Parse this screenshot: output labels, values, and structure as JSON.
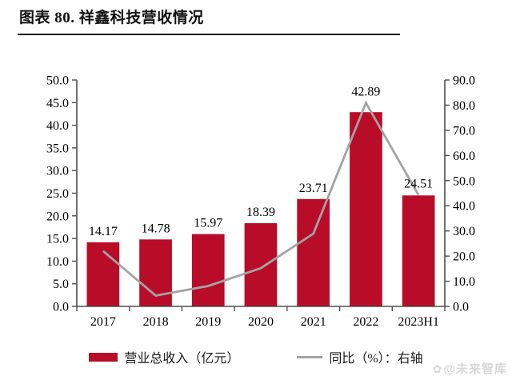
{
  "header": {
    "title": "图表 80. 祥鑫科技营收情况"
  },
  "watermark": {
    "icon_glyph": "✿",
    "text": "@未来智库"
  },
  "colors": {
    "bar": "#B80C28",
    "line": "#A3A3A3",
    "axis": "#4d4d4d",
    "label_text": "#000000",
    "title_rule": "#1c1c1c",
    "watermark": "#d7d7d7"
  },
  "chart_data": {
    "type": "bar",
    "subtype": "bar+line combo, dual axis",
    "title": "图表 80. 祥鑫科技营收情况",
    "categories": [
      "2017",
      "2018",
      "2019",
      "2020",
      "2021",
      "2022",
      "2023H1"
    ],
    "series": [
      {
        "name": "营业总收入（亿元）",
        "type": "bar",
        "axis": "left",
        "values": [
          14.17,
          14.78,
          15.97,
          18.39,
          23.71,
          42.89,
          24.51
        ],
        "data_labels": [
          "14.17",
          "14.78",
          "15.97",
          "18.39",
          "23.71",
          "42.89",
          "24.51"
        ]
      },
      {
        "name": "同比（%）：右轴",
        "type": "line",
        "axis": "right",
        "values": [
          22.0,
          4.3,
          8.1,
          15.2,
          28.9,
          80.9,
          44.3
        ]
      }
    ],
    "left_axis": {
      "min": 0,
      "max": 50,
      "step": 5,
      "tick_labels": [
        "0.0",
        "5.0",
        "10.0",
        "15.0",
        "20.0",
        "25.0",
        "30.0",
        "35.0",
        "40.0",
        "45.0",
        "50.0"
      ]
    },
    "right_axis": {
      "min": 0,
      "max": 90,
      "step": 10,
      "tick_labels": [
        "0.0",
        "10.0",
        "20.0",
        "30.0",
        "40.0",
        "50.0",
        "60.0",
        "70.0",
        "80.0",
        "90.0"
      ]
    },
    "grid": false,
    "legend_position": "bottom"
  }
}
